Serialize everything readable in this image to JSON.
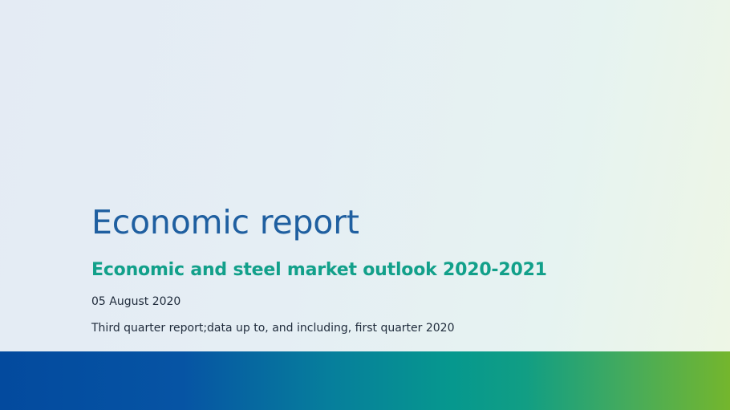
{
  "report": {
    "title": "Economic report",
    "subtitle": "Economic and steel market outlook 2020-2021",
    "date": "05 August 2020",
    "note": "Third quarter report;data up to, and including, first quarter 2020"
  },
  "colors": {
    "title": "#1f5fa0",
    "subtitle": "#12a08a",
    "body_text": "#1e2a3a",
    "band_start": "#034a9e",
    "band_mid": "#06988e",
    "band_end": "#74b62d"
  }
}
